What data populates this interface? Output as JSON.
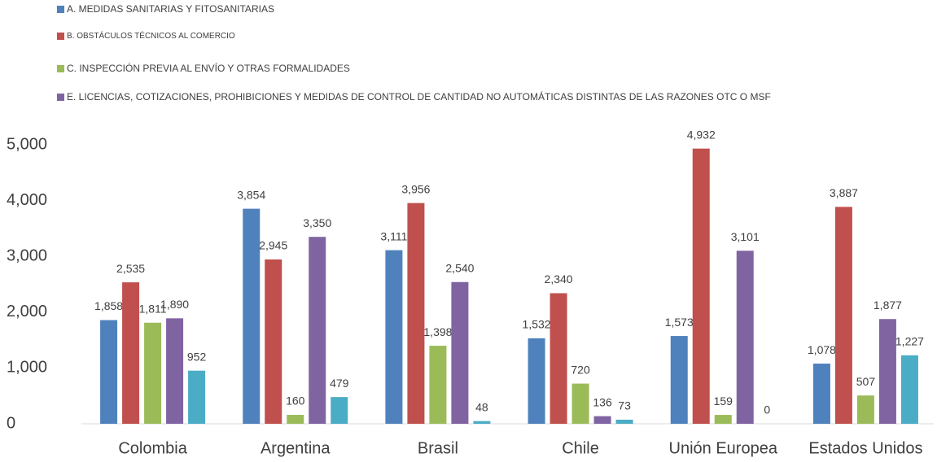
{
  "chart_data": {
    "type": "bar",
    "categories": [
      "Colombia",
      "Argentina",
      "Brasil",
      "Chile",
      "Unión Europea",
      "Estados Unidos"
    ],
    "series": [
      {
        "name": "A. MEDIDAS SANITARIAS Y FITOSANITARIAS",
        "color": "#4f81bd",
        "values": [
          1858,
          3854,
          3111,
          1532,
          1573,
          1078
        ],
        "value_labels": [
          "1,858",
          "3,854",
          "3,111",
          "1,532",
          "1,573",
          "1,078"
        ]
      },
      {
        "name": "B. OBSTÁCULOS TÉCNICOS AL COMERCIO",
        "color": "#c0504d",
        "values": [
          2535,
          2945,
          3956,
          2340,
          4932,
          3887
        ],
        "value_labels": [
          "2,535",
          "2,945",
          "3,956",
          "2,340",
          "4,932",
          "3,887"
        ]
      },
      {
        "name": "C. INSPECCIÓN PREVIA AL ENVÍO Y OTRAS FORMALIDADES",
        "color": "#9bbb59",
        "values": [
          1811,
          160,
          1398,
          720,
          159,
          507
        ],
        "value_labels": [
          "1,811",
          "160",
          "1,398",
          "720",
          "159",
          "507"
        ]
      },
      {
        "name": "E. LICENCIAS, COTIZACIONES, PROHIBICIONES Y MEDIDAS DE CONTROL DE CANTIDAD NO AUTOMÁTICAS DISTINTAS DE LAS RAZONES OTC O MSF",
        "color": "#8064a2",
        "values": [
          1890,
          3350,
          2540,
          136,
          3101,
          1877
        ],
        "value_labels": [
          "1,890",
          "3,350",
          "2,540",
          "136",
          "3,101",
          "1,877"
        ]
      },
      {
        "color": "#4bacc6",
        "values": [
          952,
          479,
          48,
          73,
          0,
          1227
        ],
        "value_labels": [
          "952",
          "479",
          "48",
          "73",
          "0",
          "1,227"
        ]
      }
    ],
    "ylim": [
      0,
      5000
    ],
    "yticks": [
      0,
      {
        "value": 1000,
        "label": "1,000"
      },
      {
        "value": 2000,
        "label": "2,000"
      },
      {
        "value": 3000,
        "label": "3,000"
      },
      {
        "value": 4000,
        "label": "4,000"
      },
      {
        "value": 5000,
        "label": "5,000"
      }
    ],
    "grid": false
  }
}
